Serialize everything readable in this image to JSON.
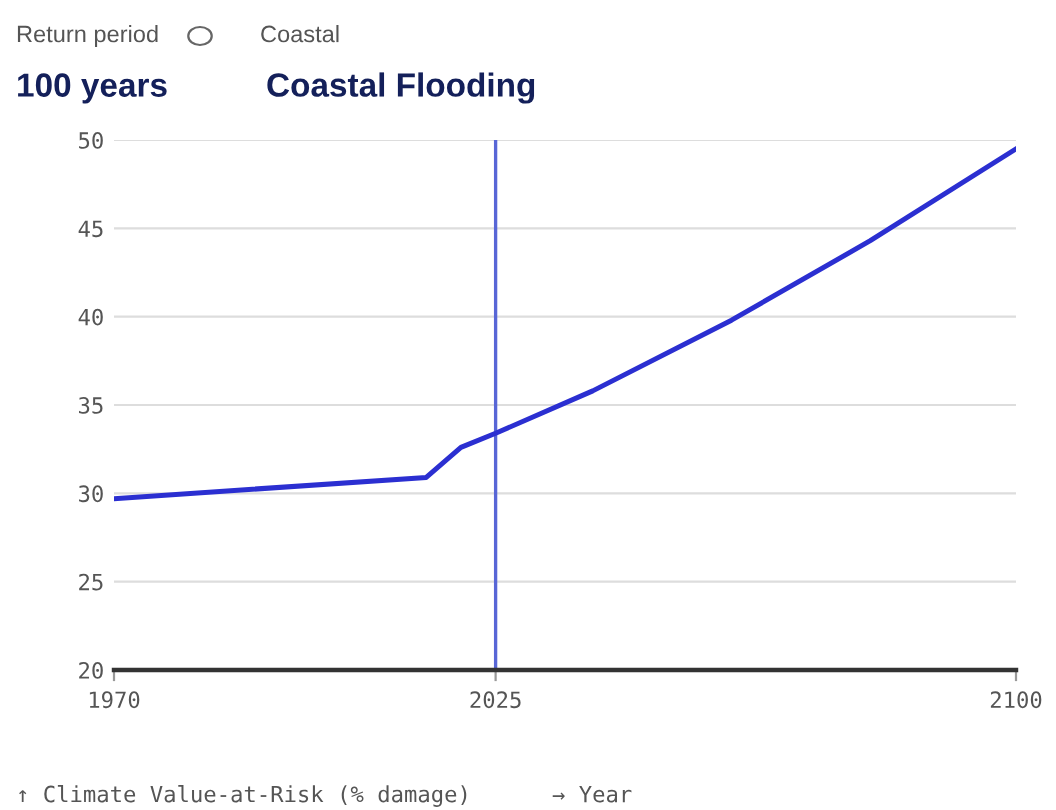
{
  "chart_data": {
    "type": "line",
    "annotations": [
      "Return period",
      "Coastal",
      "100 years",
      "Coastal Flooding"
    ],
    "xlabel": "→ Year",
    "ylabel": "↑ Climate Value-at-Risk (% damage)",
    "series": [
      {
        "color": "#2b2fd1",
        "x": [
          1970,
          2015,
          2020,
          2025,
          2039,
          2059,
          2079,
          2100
        ],
        "values": [
          29.7,
          30.9,
          32.6,
          33.4,
          35.8,
          39.8,
          44.3,
          49.5
        ]
      }
    ],
    "xlim": [
      1970,
      2100
    ],
    "xticks": [
      1970,
      2025,
      2100
    ],
    "ylim": [
      20,
      50
    ],
    "yticks": [
      20,
      25,
      30,
      35,
      40,
      45,
      50
    ],
    "ref_lines": [
      {
        "axis": "x",
        "value": 2025,
        "color": "#5866d6"
      }
    ],
    "grid": "y",
    "marker": "none",
    "line_style": "solid"
  }
}
